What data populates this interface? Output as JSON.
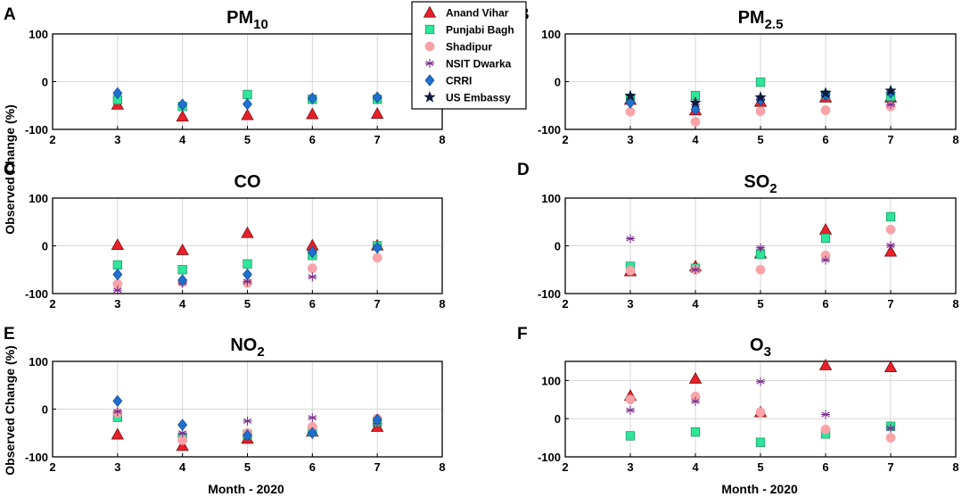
{
  "figure": {
    "ylabel": "Observed Change (%)",
    "xlabel": "Month - 2020"
  },
  "legend": {
    "location": "top-center",
    "entries": [
      {
        "name": "Anand Vihar",
        "marker": "triangle",
        "color": "#e8202a",
        "edge": "#7a0d10"
      },
      {
        "name": "Punjabi Bagh",
        "marker": "square",
        "color": "#2ee59a",
        "edge": "#1f8f5e"
      },
      {
        "name": "Shadipur",
        "marker": "circle",
        "color": "#f9a3a8",
        "edge": "#f9a3a8"
      },
      {
        "name": "NSIT Dwarka",
        "marker": "asterisk",
        "color": "#7b2d8e",
        "edge": "#7b2d8e"
      },
      {
        "name": "CRRI",
        "marker": "diamond",
        "color": "#1f6fd1",
        "edge": "#134a8e"
      },
      {
        "name": "US Embassy",
        "marker": "star",
        "color": "#0d1b3d",
        "edge": "#0d1b3d"
      }
    ]
  },
  "chart_data": [
    {
      "type": "scatter",
      "panel": "A",
      "title": "PM",
      "title_sub": "10",
      "xlim": [
        2,
        8
      ],
      "ylim": [
        -100,
        100
      ],
      "xticks": [
        2,
        3,
        4,
        5,
        6,
        7,
        8
      ],
      "yticks": [
        -100,
        0,
        100
      ],
      "grid": "vertical",
      "x": [
        3,
        4,
        5,
        6,
        7
      ],
      "series": [
        {
          "name": "Anand Vihar",
          "values": [
            -48,
            -73,
            -70,
            -68,
            -67
          ]
        },
        {
          "name": "Punjabi Bagh",
          "values": [
            -38,
            -52,
            -27,
            -37,
            -37
          ]
        },
        {
          "name": "CRRI",
          "values": [
            -24,
            -48,
            -47,
            -35,
            -33
          ]
        }
      ]
    },
    {
      "type": "scatter",
      "panel": "B",
      "title": "PM",
      "title_sub": "2.5",
      "xlim": [
        2,
        8
      ],
      "ylim": [
        -100,
        100
      ],
      "xticks": [
        2,
        3,
        4,
        5,
        6,
        7,
        8
      ],
      "yticks": [
        -100,
        0,
        100
      ],
      "grid": "vertical",
      "x": [
        3,
        4,
        5,
        6,
        7
      ],
      "series": [
        {
          "name": "Anand Vihar",
          "values": [
            -38,
            -60,
            -42,
            -33,
            -33
          ]
        },
        {
          "name": "Punjabi Bagh",
          "values": [
            -35,
            -29,
            -1,
            -28,
            -31
          ]
        },
        {
          "name": "Shadipur",
          "values": [
            -63,
            -84,
            -62,
            -60,
            -52
          ]
        },
        {
          "name": "NSIT Dwarka",
          "values": [
            -38,
            -48,
            -36,
            -31,
            -48
          ]
        },
        {
          "name": "CRRI",
          "values": [
            -44,
            -58,
            -38,
            -27,
            -23
          ]
        },
        {
          "name": "US Embassy",
          "values": [
            -30,
            -44,
            -33,
            -24,
            -19
          ]
        }
      ]
    },
    {
      "type": "scatter",
      "panel": "C",
      "title": "CO",
      "title_sub": "",
      "xlim": [
        2,
        8
      ],
      "ylim": [
        -100,
        100
      ],
      "xticks": [
        2,
        3,
        4,
        5,
        6,
        7,
        8
      ],
      "yticks": [
        -100,
        0,
        100
      ],
      "grid": "vertical",
      "x": [
        3,
        4,
        5,
        6,
        7
      ],
      "series": [
        {
          "name": "Anand Vihar",
          "values": [
            2,
            -9,
            27,
            1,
            1
          ]
        },
        {
          "name": "Punjabi Bagh",
          "values": [
            -40,
            -50,
            -38,
            -20,
            0
          ]
        },
        {
          "name": "Shadipur",
          "values": [
            -80,
            -76,
            -78,
            -47,
            -25
          ]
        },
        {
          "name": "NSIT Dwarka",
          "values": [
            -93,
            -78,
            -75,
            -65,
            -3
          ]
        },
        {
          "name": "CRRI",
          "values": [
            -60,
            -72,
            -60,
            -13,
            -4
          ]
        }
      ]
    },
    {
      "type": "scatter",
      "panel": "D",
      "title": "SO",
      "title_sub": "2",
      "xlim": [
        2,
        8
      ],
      "ylim": [
        -100,
        100
      ],
      "xticks": [
        2,
        3,
        4,
        5,
        6,
        7,
        8
      ],
      "yticks": [
        -100,
        0,
        100
      ],
      "grid": "vertical",
      "x": [
        3,
        4,
        5,
        6,
        7
      ],
      "series": [
        {
          "name": "Anand Vihar",
          "values": [
            -53,
            -43,
            -16,
            34,
            -12
          ]
        },
        {
          "name": "Punjabi Bagh",
          "values": [
            -43,
            -47,
            -18,
            16,
            61
          ]
        },
        {
          "name": "Shadipur",
          "values": [
            -52,
            -50,
            -50,
            -20,
            34
          ]
        },
        {
          "name": "NSIT Dwarka",
          "values": [
            15,
            -50,
            -4,
            -30,
            1
          ]
        }
      ]
    },
    {
      "type": "scatter",
      "panel": "E",
      "title": "NO",
      "title_sub": "2",
      "xlim": [
        2,
        8
      ],
      "ylim": [
        -100,
        100
      ],
      "xticks": [
        2,
        3,
        4,
        5,
        6,
        7,
        8
      ],
      "yticks": [
        -100,
        0,
        100
      ],
      "grid": "vertical",
      "x": [
        3,
        4,
        5,
        6,
        7
      ],
      "series": [
        {
          "name": "Anand Vihar",
          "values": [
            -53,
            -77,
            -62,
            -47,
            -37
          ]
        },
        {
          "name": "Punjabi Bagh",
          "values": [
            -17,
            -60,
            -53,
            -47,
            -27
          ]
        },
        {
          "name": "Shadipur",
          "values": [
            -8,
            -65,
            -50,
            -37,
            -20
          ]
        },
        {
          "name": "NSIT Dwarka",
          "values": [
            -5,
            -50,
            -25,
            -18,
            -30
          ]
        },
        {
          "name": "CRRI",
          "values": [
            17,
            -33,
            -55,
            -50,
            -22
          ]
        }
      ]
    },
    {
      "type": "scatter",
      "panel": "F",
      "title": "O",
      "title_sub": "3",
      "xlim": [
        2,
        8
      ],
      "ylim": [
        -100,
        150
      ],
      "xticks": [
        2,
        3,
        4,
        5,
        6,
        7,
        8
      ],
      "yticks": [
        -100,
        0,
        100
      ],
      "grid": "both",
      "x": [
        3,
        4,
        5,
        6,
        7
      ],
      "series": [
        {
          "name": "Anand Vihar",
          "values": [
            60,
            105,
            17,
            140,
            135
          ]
        },
        {
          "name": "Punjabi Bagh",
          "values": [
            -45,
            -35,
            -62,
            -40,
            -20
          ]
        },
        {
          "name": "Shadipur",
          "values": [
            50,
            58,
            17,
            -28,
            -50
          ]
        },
        {
          "name": "NSIT Dwarka",
          "values": [
            22,
            45,
            97,
            11,
            -25
          ]
        }
      ]
    }
  ]
}
